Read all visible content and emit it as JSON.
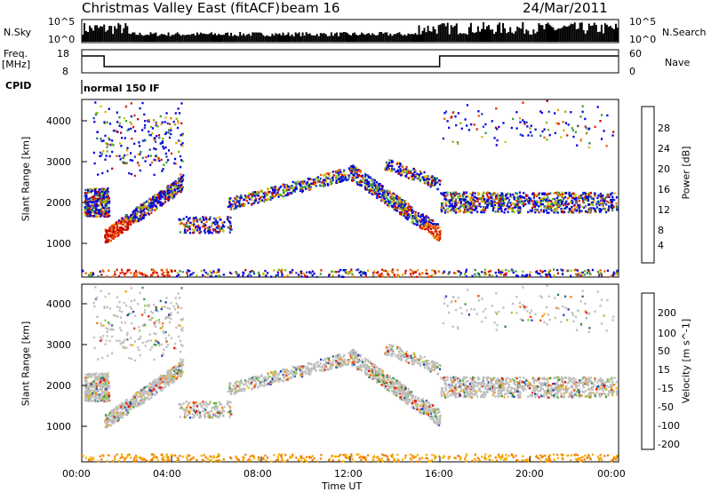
{
  "header": {
    "radar_title": "Christmas Valley East (fitACF)",
    "beam": "beam 16",
    "date": "24/Mar/2011"
  },
  "top_panels": {
    "nsky_label": "N.Sky",
    "nsky_ticks": [
      "10^5",
      "10^0"
    ],
    "nsearch_label": "N.Search",
    "nsearch_ticks": [
      "10^5",
      "10^0"
    ],
    "freq_label_1": "Freq.",
    "freq_label_2": "[MHz]",
    "freq_ticks": [
      "18",
      "8"
    ],
    "nave_label": "Nave",
    "nave_ticks": [
      "60",
      "0"
    ],
    "cpid_label": "CPID",
    "cpid_text": "normal 150 IF"
  },
  "chart_data": [
    {
      "type": "heatmap",
      "name": "power",
      "ylabel": "Slant Range [km]",
      "yticks": [
        "4000",
        "3000",
        "2000",
        "1000"
      ],
      "ylim": [
        200,
        4550
      ],
      "colorbar_label": "Power [dB]",
      "colorbar_ticks": [
        "28",
        "24",
        "20",
        "16",
        "12",
        "8",
        "4"
      ],
      "colors": [
        "#0000dd",
        "#1a40c8",
        "#2e7d6f",
        "#3a9a3a",
        "#7ab800",
        "#c6c600",
        "#f0a000",
        "#f06000",
        "#e02000",
        "#c00000"
      ]
    },
    {
      "type": "heatmap",
      "name": "velocity",
      "ylabel": "Slant Range [km]",
      "yticks": [
        "4000",
        "3000",
        "2000",
        "1000"
      ],
      "ylim": [
        200,
        4550
      ],
      "colorbar_label": "Velocity [m s^-1]",
      "colorbar_ticks": [
        "200",
        "100",
        "50",
        "15",
        "-15",
        "-50",
        "-100",
        "-200"
      ],
      "colors": [
        "#1a3fc0",
        "#2d6e7a",
        "#3a9a3a",
        "#8acd3a",
        "#bfbfbf",
        "#f5b000",
        "#f08000",
        "#f04000",
        "#e01010"
      ]
    }
  ],
  "time_axis": {
    "label": "Time UT",
    "ticks": [
      "00:00",
      "04:00",
      "08:00",
      "12:00",
      "16:00",
      "20:00",
      "00:00"
    ]
  }
}
